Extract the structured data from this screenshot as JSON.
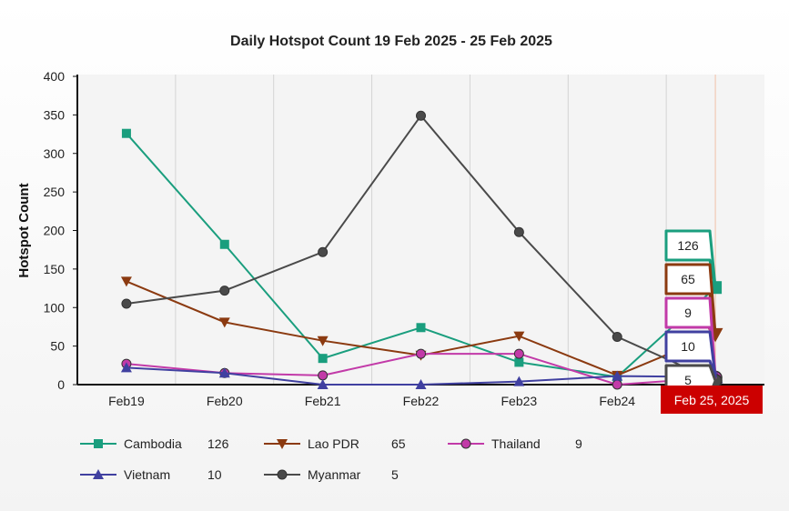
{
  "chart_data": {
    "type": "line",
    "title": "Daily Hotspot Count 19 Feb 2025 - 25 Feb 2025",
    "xlabel": "",
    "ylabel": "Hotspot Count",
    "categories": [
      "Feb19",
      "Feb20",
      "Feb21",
      "Feb22",
      "Feb23",
      "Feb24",
      "Feb 25, 2025"
    ],
    "ylim": [
      0,
      400
    ],
    "yticks": [
      0,
      50,
      100,
      150,
      200,
      250,
      300,
      350,
      400
    ],
    "grid": "vertical",
    "legend_position": "bottom",
    "highlight_label": "Feb 25, 2025",
    "highlight_color": "#cc0000",
    "series": [
      {
        "name": "Cambodia",
        "color": "#1a9e7e",
        "marker": "square",
        "values": [
          326,
          182,
          34,
          74,
          29,
          10,
          126
        ],
        "last_value": "126"
      },
      {
        "name": "Lao PDR",
        "color": "#8b3a10",
        "marker": "triangle-down",
        "values": [
          134,
          81,
          57,
          38,
          63,
          12,
          65
        ],
        "last_value": "65"
      },
      {
        "name": "Thailand",
        "color": "#c23aa8",
        "marker": "circle",
        "values": [
          27,
          15,
          12,
          40,
          40,
          0,
          9
        ],
        "last_value": "9"
      },
      {
        "name": "Vietnam",
        "color": "#4040a0",
        "marker": "triangle-up",
        "values": [
          22,
          15,
          0,
          0,
          4,
          11,
          10
        ],
        "last_value": "10"
      },
      {
        "name": "Myanmar",
        "color": "#4a4a4a",
        "marker": "circle",
        "values": [
          105,
          122,
          172,
          349,
          198,
          62,
          5
        ],
        "last_value": "5"
      }
    ]
  }
}
